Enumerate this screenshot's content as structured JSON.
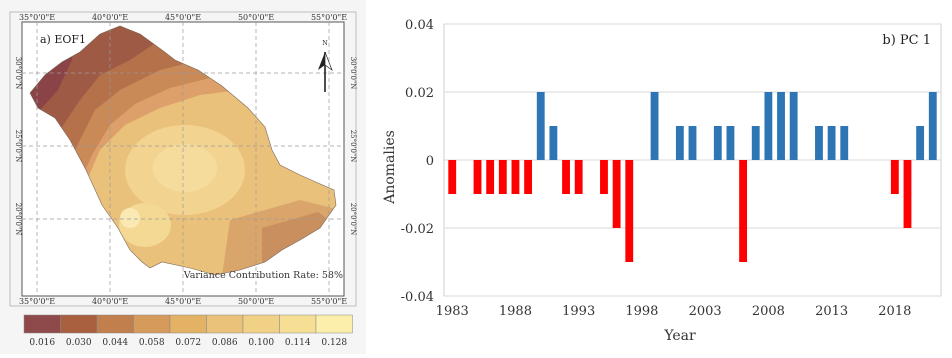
{
  "map": {
    "panel_label": "a) EOF1",
    "lon_labels": [
      "35°0'0\"E",
      "40°0'0\"E",
      "45°0'0\"E",
      "50°0'0\"E",
      "55°0'0\"E"
    ],
    "lat_labels": [
      "30°0'0\"N",
      "25°0'0\"N",
      "20°0'0\"N"
    ],
    "variance_text": "Variance Contribution Rate: 58%",
    "north_label": "N",
    "colorbar": {
      "labels": [
        "0.016",
        "0.030",
        "0.044",
        "0.058",
        "0.072",
        "0.086",
        "0.100",
        "0.114",
        "0.128"
      ],
      "colors": [
        "#8e4a4a",
        "#a8603e",
        "#c27f4e",
        "#d69a5a",
        "#e3b265",
        "#eac27a",
        "#f1d185",
        "#f6de95",
        "#fbefab"
      ]
    }
  },
  "chart_data": {
    "type": "bar",
    "title": "b) PC 1",
    "xlabel": "Year",
    "ylabel": "Anomalies",
    "ylim": [
      -0.04,
      0.04
    ],
    "yticks": [
      "0.04",
      "0.02",
      "0",
      "-0.02",
      "-0.04"
    ],
    "xticks": [
      "1983",
      "1988",
      "1993",
      "1998",
      "2003",
      "2008",
      "2013",
      "2018"
    ],
    "positive_color": "#2e75b6",
    "negative_color": "#ff0000",
    "x": [
      1983,
      1984,
      1985,
      1986,
      1987,
      1988,
      1989,
      1990,
      1991,
      1992,
      1993,
      1994,
      1995,
      1996,
      1997,
      1998,
      1999,
      2000,
      2001,
      2002,
      2003,
      2004,
      2005,
      2006,
      2007,
      2008,
      2009,
      2010,
      2011,
      2012,
      2013,
      2014,
      2015,
      2016,
      2017,
      2018,
      2019,
      2020,
      2021
    ],
    "values": [
      -0.01,
      0,
      -0.01,
      -0.01,
      -0.01,
      -0.01,
      -0.01,
      0.02,
      0.01,
      -0.01,
      -0.01,
      0,
      -0.01,
      -0.02,
      -0.03,
      0,
      0.02,
      0,
      0.01,
      0.01,
      0,
      0.01,
      0.01,
      -0.03,
      0.01,
      0.02,
      0.02,
      0.02,
      0,
      0.01,
      0.01,
      0.01,
      0,
      0,
      0,
      -0.01,
      -0.02,
      0.01,
      0.02
    ]
  }
}
